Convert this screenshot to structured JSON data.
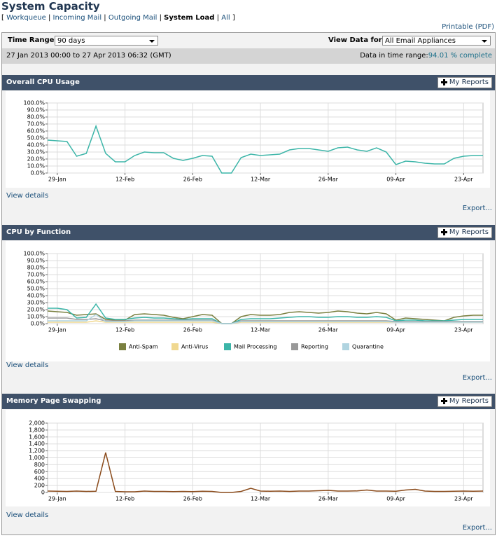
{
  "header": {
    "title": "System Capacity",
    "printable": "Printable (PDF)"
  },
  "nav": {
    "open": "[",
    "close": "]",
    "separator": "|",
    "items": [
      "Workqueue",
      "Incoming Mail",
      "Outgoing Mail",
      "System Load",
      "All"
    ]
  },
  "controls": {
    "time_range_label": "Time Range:",
    "time_range_value": "90 days",
    "view_label": "View Data for:",
    "view_value": "All Email Appliances",
    "range_text": "27 Jan 2013 00:00 to 27 Apr 2013 06:32 (GMT)",
    "complete_label": "Data in time range:",
    "complete_value": "94.01 % complete"
  },
  "panels": [
    {
      "title": "Overall CPU Usage",
      "button": "My Reports",
      "details": "View details",
      "export": "Export..."
    },
    {
      "title": "CPU by Function",
      "button": "My Reports",
      "details": "View details",
      "export": "Export..."
    },
    {
      "title": "Memory Page Swapping",
      "button": "My Reports",
      "details": "View details",
      "export": "Export..."
    }
  ],
  "chart_data": [
    {
      "type": "line",
      "categories": [
        null,
        "29-Jan",
        null,
        null,
        null,
        null,
        null,
        null,
        "12-Feb",
        null,
        null,
        null,
        null,
        null,
        null,
        "26-Feb",
        null,
        null,
        null,
        null,
        null,
        null,
        "12-Mar",
        null,
        null,
        null,
        null,
        null,
        null,
        "26-Mar",
        null,
        null,
        null,
        null,
        null,
        null,
        "09-Apr",
        null,
        null,
        null,
        null,
        null,
        null,
        "23-Apr",
        null,
        null
      ],
      "series": [
        {
          "color": "#3cb5a8",
          "values": [
            47,
            46,
            45,
            24,
            28,
            67,
            28,
            16,
            16,
            25,
            30,
            29,
            29,
            21,
            18,
            21,
            25,
            24,
            0,
            0,
            22,
            27,
            25,
            26,
            27,
            33,
            35,
            35,
            33,
            31,
            36,
            37,
            33,
            31,
            36,
            30,
            12,
            17,
            16,
            14,
            13,
            13,
            21,
            24,
            25,
            25
          ]
        }
      ],
      "ylim": [
        0,
        100
      ],
      "yticks": [
        {
          "value": 0,
          "label": "0.0%"
        },
        {
          "value": 10,
          "label": "10.0%"
        },
        {
          "value": 20,
          "label": "20.0%"
        },
        {
          "value": 30,
          "label": "30.0%"
        },
        {
          "value": 40,
          "label": "40.0%"
        },
        {
          "value": 50,
          "label": "50.0%"
        },
        {
          "value": 60,
          "label": "60.0%"
        },
        {
          "value": 70,
          "label": "70.0%"
        },
        {
          "value": 80,
          "label": "80.0%"
        },
        {
          "value": 90,
          "label": "90.0%"
        },
        {
          "value": 100,
          "label": "100.0%"
        }
      ],
      "grid": true
    },
    {
      "type": "line",
      "categories": [
        null,
        "29-Jan",
        null,
        null,
        null,
        null,
        null,
        null,
        "12-Feb",
        null,
        null,
        null,
        null,
        null,
        null,
        "26-Feb",
        null,
        null,
        null,
        null,
        null,
        null,
        "12-Mar",
        null,
        null,
        null,
        null,
        null,
        null,
        "26-Mar",
        null,
        null,
        null,
        null,
        null,
        null,
        "09-Apr",
        null,
        null,
        null,
        null,
        null,
        null,
        "23-Apr",
        null,
        null
      ],
      "series": [
        {
          "name": "Anti-Spam",
          "color": "#7a8040",
          "values": [
            18,
            17,
            16,
            12,
            13,
            14,
            6,
            5,
            5,
            13,
            14,
            13,
            12,
            9,
            7,
            10,
            13,
            12,
            0,
            0,
            10,
            13,
            12,
            12,
            13,
            16,
            17,
            16,
            15,
            16,
            18,
            17,
            15,
            14,
            16,
            14,
            5,
            8,
            7,
            6,
            5,
            4,
            9,
            11,
            12,
            12
          ]
        },
        {
          "name": "Anti-Virus",
          "color": "#f0d890",
          "values": [
            2,
            2,
            2,
            2,
            2,
            4,
            2,
            2,
            2,
            2,
            2,
            2,
            2,
            2,
            2,
            2,
            2,
            2,
            0,
            0,
            2,
            2,
            2,
            2,
            2,
            2,
            2,
            2,
            2,
            2,
            2,
            2,
            2,
            2,
            2,
            2,
            2,
            2,
            2,
            2,
            2,
            2,
            2,
            2,
            2,
            2
          ]
        },
        {
          "name": "Mail Processing",
          "color": "#3cb5a8",
          "values": [
            22,
            22,
            20,
            8,
            9,
            28,
            8,
            6,
            6,
            8,
            9,
            8,
            8,
            7,
            6,
            7,
            7,
            7,
            0,
            0,
            6,
            7,
            7,
            7,
            8,
            9,
            10,
            10,
            9,
            9,
            10,
            10,
            9,
            9,
            10,
            9,
            4,
            5,
            5,
            4,
            4,
            4,
            5,
            6,
            6,
            6
          ]
        },
        {
          "name": "Reporting",
          "color": "#999999",
          "values": [
            8,
            8,
            8,
            6,
            6,
            7,
            4,
            4,
            4,
            5,
            5,
            5,
            5,
            5,
            5,
            5,
            5,
            5,
            0,
            0,
            4,
            4,
            4,
            4,
            4,
            4,
            4,
            4,
            4,
            4,
            4,
            4,
            4,
            4,
            4,
            4,
            3,
            3,
            3,
            3,
            3,
            3,
            3,
            3,
            3,
            3
          ]
        },
        {
          "name": "Quarantine",
          "color": "#b0d4e0",
          "values": [
            4,
            4,
            4,
            4,
            4,
            13,
            3,
            3,
            3,
            4,
            4,
            4,
            4,
            4,
            4,
            4,
            4,
            4,
            0,
            0,
            3,
            3,
            3,
            3,
            3,
            3,
            3,
            3,
            3,
            3,
            3,
            3,
            3,
            3,
            3,
            3,
            2,
            2,
            2,
            2,
            2,
            2,
            2,
            2,
            2,
            2
          ]
        }
      ],
      "ylim": [
        0,
        100
      ],
      "yticks": [
        {
          "value": 0,
          "label": "0.0%"
        },
        {
          "value": 10,
          "label": "10.0%"
        },
        {
          "value": 20,
          "label": "20.0%"
        },
        {
          "value": 30,
          "label": "30.0%"
        },
        {
          "value": 40,
          "label": "40.0%"
        },
        {
          "value": 50,
          "label": "50.0%"
        },
        {
          "value": 60,
          "label": "60.0%"
        },
        {
          "value": 70,
          "label": "70.0%"
        },
        {
          "value": 80,
          "label": "80.0%"
        },
        {
          "value": 90,
          "label": "90.0%"
        },
        {
          "value": 100,
          "label": "100.0%"
        }
      ],
      "grid": true,
      "legend": "bottom"
    },
    {
      "type": "line",
      "categories": [
        null,
        "29-Jan",
        null,
        null,
        null,
        null,
        null,
        null,
        "12-Feb",
        null,
        null,
        null,
        null,
        null,
        null,
        "26-Feb",
        null,
        null,
        null,
        null,
        null,
        null,
        "12-Mar",
        null,
        null,
        null,
        null,
        null,
        null,
        "26-Mar",
        null,
        null,
        null,
        null,
        null,
        null,
        "09-Apr",
        null,
        null,
        null,
        null,
        null,
        null,
        "23-Apr",
        null,
        null
      ],
      "series": [
        {
          "color": "#8a4a1a",
          "values": [
            40,
            35,
            30,
            40,
            30,
            35,
            1150,
            30,
            20,
            20,
            40,
            30,
            30,
            25,
            30,
            25,
            35,
            30,
            0,
            0,
            30,
            120,
            40,
            35,
            40,
            30,
            40,
            40,
            50,
            60,
            40,
            40,
            45,
            70,
            40,
            40,
            35,
            70,
            90,
            40,
            30,
            30,
            35,
            40,
            35,
            40
          ]
        }
      ],
      "ylim": [
        0,
        2000
      ],
      "yticks": [
        0,
        200,
        400,
        600,
        800,
        {
          "value": 1000,
          "label": "1,000"
        },
        {
          "value": 1200,
          "label": "1,200"
        },
        {
          "value": 1400,
          "label": "1,400"
        },
        {
          "value": 1600,
          "label": "1,600"
        },
        {
          "value": 1800,
          "label": "1,800"
        },
        {
          "value": 2000,
          "label": "2,000"
        }
      ],
      "grid": true
    }
  ]
}
